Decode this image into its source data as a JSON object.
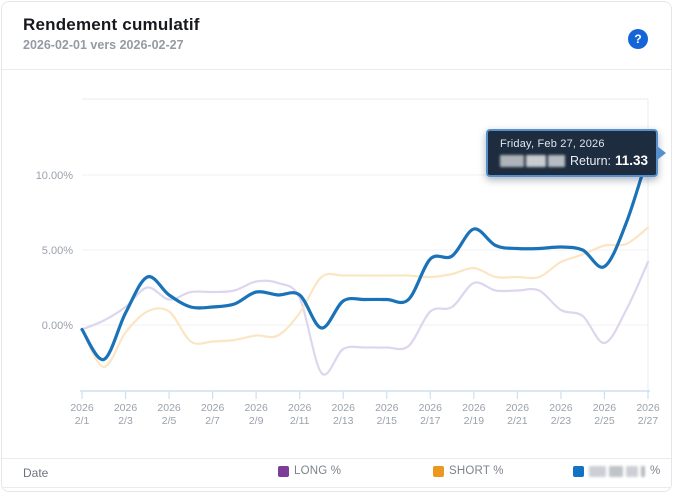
{
  "header": {
    "title": "Rendement cumulatif",
    "subtitle": "2026-02-01 vers 2026-02-27",
    "help_label": "?"
  },
  "tooltip": {
    "date_line": "Friday, Feb 27, 2026",
    "series_name_redacted": true,
    "return_label": "Return:",
    "return_value": "11.33"
  },
  "legend": {
    "date_label": "Date",
    "long_label": "LONG %",
    "short_label": "SHORT %",
    "main_label_redacted": true,
    "main_suffix": "%",
    "long_swatch_color": "#7d3c98",
    "short_swatch_color": "#ec9820",
    "main_swatch_color": "#1472c4"
  },
  "chart_data": {
    "type": "line",
    "title": "Rendement cumulatif",
    "xlabel": "Date",
    "ylabel": "",
    "grid": true,
    "legend_position": "bottom",
    "x_year": "2026",
    "x_tick_labels": [
      "2/1",
      "2/3",
      "2/5",
      "2/7",
      "2/9",
      "2/11",
      "2/13",
      "2/15",
      "2/17",
      "2/19",
      "2/21",
      "2/23",
      "2/25",
      "2/27"
    ],
    "y_ticks": [
      {
        "label": "10.00%",
        "value": 10
      },
      {
        "label": "5.00%",
        "value": 5
      },
      {
        "label": "0.00%",
        "value": 0
      }
    ],
    "ylim": [
      -4.4,
      15.1
    ],
    "dates": [
      "2/1",
      "2/2",
      "2/3",
      "2/4",
      "2/5",
      "2/6",
      "2/7",
      "2/8",
      "2/9",
      "2/10",
      "2/11",
      "2/12",
      "2/13",
      "2/14",
      "2/15",
      "2/16",
      "2/17",
      "2/18",
      "2/19",
      "2/20",
      "2/21",
      "2/22",
      "2/23",
      "2/24",
      "2/25",
      "2/26",
      "2/27"
    ],
    "series": [
      {
        "name": "LONG %",
        "redacted": false,
        "line_color": "#ded5ee",
        "width": 2.2,
        "values": [
          -0.3,
          0.3,
          1.2,
          2.5,
          1.7,
          2.2,
          2.2,
          2.3,
          2.9,
          2.8,
          1.8,
          -3.2,
          -1.6,
          -1.5,
          -1.5,
          -1.4,
          0.9,
          1.2,
          2.8,
          2.3,
          2.3,
          2.3,
          1.0,
          0.6,
          -1.2,
          1.0,
          4.2
        ]
      },
      {
        "name": "SHORT %",
        "redacted": false,
        "line_color": "#fbe6c3",
        "width": 2.2,
        "values": [
          -0.3,
          -2.8,
          -0.5,
          0.9,
          0.9,
          -1.1,
          -1.1,
          -1.0,
          -0.7,
          -0.7,
          0.8,
          3.2,
          3.3,
          3.3,
          3.3,
          3.3,
          3.2,
          3.4,
          3.8,
          3.2,
          3.2,
          3.2,
          4.2,
          4.7,
          5.3,
          5.4,
          6.5
        ]
      },
      {
        "name": "%",
        "redacted": true,
        "line_color": "#1a72b8",
        "width": 3.2,
        "values": [
          -0.3,
          -2.3,
          0.8,
          3.2,
          2.0,
          1.2,
          1.2,
          1.4,
          2.2,
          2.0,
          2.0,
          -0.2,
          1.6,
          1.7,
          1.7,
          1.7,
          4.4,
          4.6,
          6.4,
          5.3,
          5.1,
          5.1,
          5.2,
          5.0,
          3.9,
          6.8,
          11.33
        ]
      }
    ],
    "highlight": {
      "date": "2/27",
      "series": "redacted-main",
      "value": 11.33
    }
  }
}
